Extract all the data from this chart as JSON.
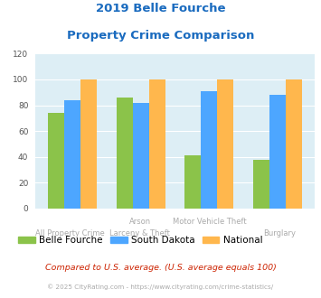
{
  "title_line1": "2019 Belle Fourche",
  "title_line2": "Property Crime Comparison",
  "cat_labels_top": [
    "",
    "Arson",
    "Motor Vehicle Theft",
    ""
  ],
  "cat_labels_bot": [
    "All Property Crime",
    "",
    "Larceny & Theft",
    "Burglary"
  ],
  "belle_fourche": [
    74,
    86,
    41,
    38
  ],
  "south_dakota": [
    84,
    82,
    91,
    88
  ],
  "national": [
    100,
    100,
    100,
    100
  ],
  "color_belle": "#8bc34a",
  "color_sd": "#4da6ff",
  "color_national": "#ffb74d",
  "ylim": [
    0,
    120
  ],
  "yticks": [
    0,
    20,
    40,
    60,
    80,
    100,
    120
  ],
  "bg_color": "#ddeef5",
  "title_color": "#1a6bbf",
  "xlabel_color": "#aaaaaa",
  "legend_labels": [
    "Belle Fourche",
    "South Dakota",
    "National"
  ],
  "footnote1": "Compared to U.S. average. (U.S. average equals 100)",
  "footnote2": "© 2025 CityRating.com - https://www.cityrating.com/crime-statistics/",
  "footnote1_color": "#cc2200",
  "footnote2_color": "#aaaaaa",
  "grid_color": "#ffffff",
  "bar_width": 0.24
}
